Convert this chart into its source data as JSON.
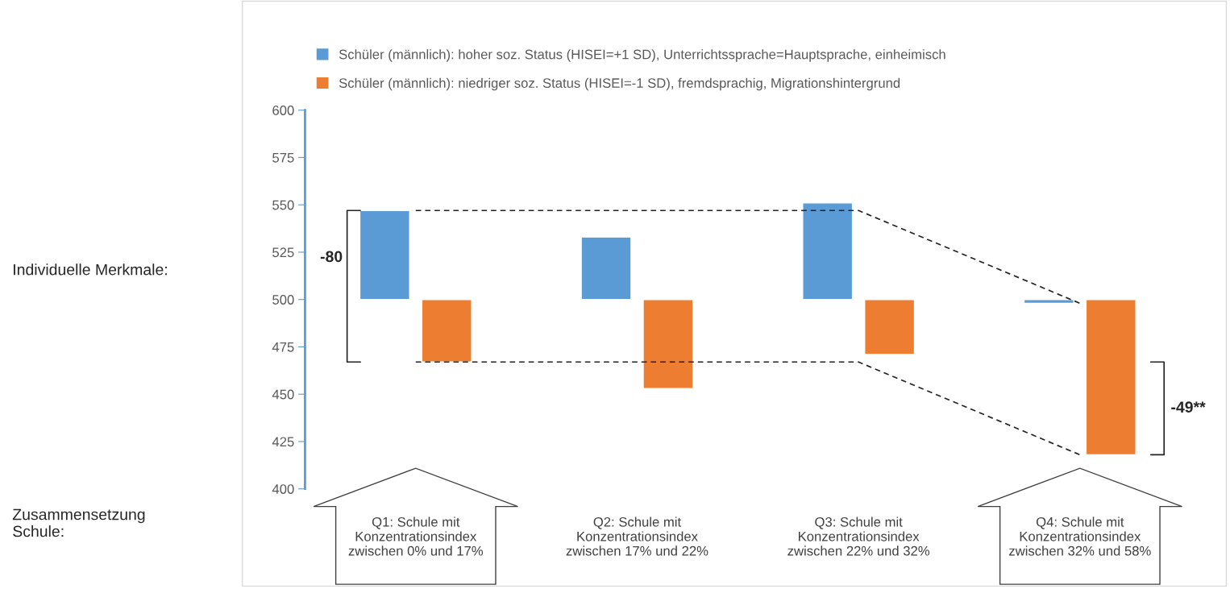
{
  "chart_data": {
    "type": "bar",
    "categories": [
      "Q1: Schule mit\nKonzentrationsindex\nzwischen 0% und 17%",
      "Q2: Schule mit\nKonzentrationsindex\nzwischen 17% und 22%",
      "Q3: Schule mit\nKonzentrationsindex\nzwischen 22% und 32%",
      "Q4: Schule mit\nKonzentrationsindex\nzwischen 32% und 58%"
    ],
    "series": [
      {
        "name": "Schüler (männlich): hoher soz. Status (HISEI=+1 SD), Unterrichtssprache=Hauptsprache, einheimisch",
        "color": "#5b9bd5",
        "values": [
          47,
          33,
          51,
          -2
        ],
        "base": [
          500,
          500,
          500,
          500
        ]
      },
      {
        "name": "Schüler (männlich): niedriger soz. Status (HISEI=-1 SD), fremdsprachig, Migrationshintergrund",
        "color": "#ed7d31",
        "values": [
          -33,
          -47,
          -29,
          -82
        ],
        "base": [
          500,
          500,
          500,
          500
        ]
      },
      {
        "type": "line",
        "color": "#222222",
        "line_style": "dashed",
        "values": [
          547,
          547,
          547,
          498
        ]
      },
      {
        "type": "line",
        "color": "#222222",
        "line_style": "dashed",
        "values": [
          467,
          467,
          467,
          418
        ]
      }
    ],
    "ylim": [
      400,
      600
    ],
    "yticks": [
      400,
      425,
      450,
      475,
      500,
      525,
      550,
      575,
      600
    ],
    "legend": "top",
    "grid": false,
    "annotations": [
      "Individuelle Merkmale:",
      "Zusammensetzung\nSchule:",
      "-80",
      "-49**"
    ]
  }
}
